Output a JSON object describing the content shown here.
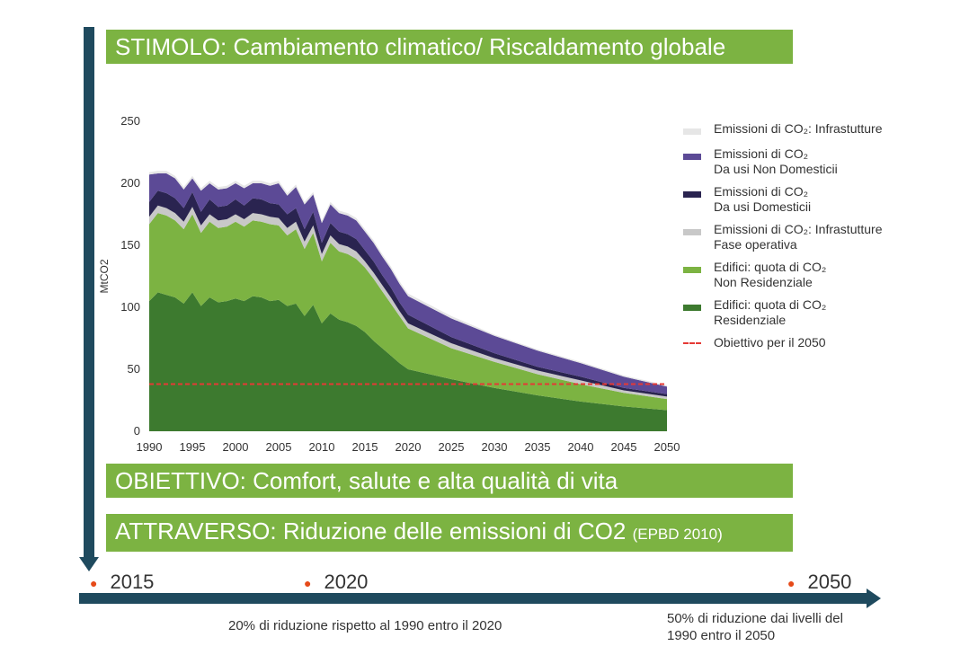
{
  "banners": {
    "stimolo": "STIMOLO: Cambiamento climatico/ Riscaldamento globale",
    "obiettivo": "OBIETTIVO: Comfort, salute e alta qualità di vita",
    "attraverso_main": "ATTRAVERSO: Riduzione delle emissioni di CO2",
    "attraverso_small": "(EPBD 2010)"
  },
  "timeline": {
    "years": [
      "2015",
      "2020",
      "2050"
    ],
    "note_2020": "20% di riduzione rispetto al 1990 entro il 2020",
    "note_2050_line1": "50% di riduzione dai livelli del",
    "note_2050_line2": "1990 entro il 2050"
  },
  "colors": {
    "residenziale": "#3d7a2f",
    "non_residenziale": "#7cb342",
    "infra_operativa": "#c8c8c8",
    "domestici": "#2a2450",
    "non_domestici": "#5c4a96",
    "infrastrutture": "#e6e6e6",
    "target": "#e53935"
  },
  "legend": [
    {
      "key": "infrastrutture",
      "line1": "Emissioni di CO₂: Infrastutture",
      "line2": ""
    },
    {
      "key": "non_domestici",
      "line1": "Emissioni di CO₂",
      "line2": "Da usi Non Domesticii"
    },
    {
      "key": "domestici",
      "line1": "Emissioni di CO₂",
      "line2": "Da usi Domesticii"
    },
    {
      "key": "infra_operativa",
      "line1": "Emissioni di CO₂: Infrastutture",
      "line2": "Fase operativa"
    },
    {
      "key": "non_residenziale",
      "line1": "Edifici: quota di CO₂",
      "line2": "Non Residenziale"
    },
    {
      "key": "residenziale",
      "line1": "Edifici: quota di CO₂",
      "line2": "Residenziale"
    },
    {
      "key": "target",
      "line1": "Obiettivo per il 2050",
      "line2": ""
    }
  ],
  "chart_data": {
    "type": "area",
    "stacked": true,
    "ylabel": "MtCO2",
    "ylim": [
      0,
      250
    ],
    "yticks": [
      0,
      50,
      100,
      150,
      200,
      250
    ],
    "xlim": [
      1990,
      2050
    ],
    "xticks": [
      1990,
      1995,
      2000,
      2005,
      2010,
      2015,
      2020,
      2025,
      2030,
      2035,
      2040,
      2045,
      2050
    ],
    "grid": false,
    "legend_position": "right",
    "target_line": {
      "name": "Obiettivo per il 2050",
      "value": 38
    },
    "x": [
      1990,
      1991,
      1992,
      1993,
      1994,
      1995,
      1996,
      1997,
      1998,
      1999,
      2000,
      2001,
      2002,
      2003,
      2004,
      2005,
      2006,
      2007,
      2008,
      2009,
      2010,
      2011,
      2012,
      2013,
      2014,
      2015,
      2016,
      2017,
      2018,
      2019,
      2020,
      2025,
      2030,
      2035,
      2040,
      2045,
      2050
    ],
    "series": [
      {
        "key": "residenziale",
        "name": "Edifici: quota di CO₂ Residenziale",
        "values": [
          105,
          112,
          110,
          108,
          103,
          112,
          101,
          108,
          104,
          105,
          107,
          105,
          109,
          108,
          105,
          106,
          101,
          103,
          93,
          102,
          87,
          95,
          90,
          88,
          85,
          80,
          73,
          67,
          61,
          55,
          50,
          42,
          35,
          29,
          24,
          20,
          17
        ]
      },
      {
        "key": "non_residenziale",
        "name": "Edifici: quota di CO₂ Non Residenziale",
        "values": [
          62,
          64,
          64,
          62,
          60,
          63,
          59,
          61,
          60,
          60,
          62,
          60,
          61,
          61,
          62,
          60,
          57,
          60,
          54,
          58,
          50,
          57,
          55,
          55,
          54,
          52,
          50,
          46,
          42,
          38,
          33,
          25,
          21,
          17,
          14,
          11,
          9
        ]
      },
      {
        "key": "infra_operativa",
        "name": "Emissioni di CO₂: Infrastutture Fase operativa",
        "values": [
          6,
          6,
          6,
          6,
          6,
          6,
          6,
          6,
          6,
          6,
          6,
          6,
          6,
          6,
          6,
          6,
          6,
          6,
          6,
          6,
          6,
          6,
          6,
          6,
          6,
          5,
          5,
          5,
          5,
          4,
          4,
          4,
          3,
          3,
          3,
          2,
          2
        ]
      },
      {
        "key": "domestici",
        "name": "Emissioni di CO₂ Da usi Domesticii",
        "values": [
          12,
          12,
          12,
          12,
          11,
          12,
          11,
          12,
          11,
          11,
          12,
          11,
          12,
          12,
          11,
          11,
          11,
          11,
          10,
          11,
          9,
          10,
          10,
          10,
          10,
          9,
          9,
          8,
          8,
          7,
          7,
          5,
          4,
          3,
          3,
          2,
          2
        ]
      },
      {
        "key": "non_domestici",
        "name": "Emissioni di CO₂ Da usi Non Domesticii",
        "values": [
          22,
          14,
          16,
          16,
          15,
          11,
          17,
          13,
          14,
          14,
          13,
          14,
          12,
          13,
          14,
          17,
          15,
          17,
          20,
          14,
          16,
          15,
          15,
          15,
          15,
          15,
          15,
          15,
          15,
          15,
          15,
          15,
          14,
          13,
          11,
          9,
          6
        ]
      },
      {
        "key": "infrastrutture",
        "name": "Emissioni di CO₂: Infrastutture",
        "values": [
          2,
          2,
          2,
          2,
          2,
          2,
          2,
          2,
          2,
          2,
          2,
          2,
          2,
          2,
          2,
          2,
          2,
          2,
          2,
          2,
          2,
          2,
          2,
          2,
          2,
          2,
          2,
          2,
          2,
          2,
          2,
          2,
          1,
          1,
          1,
          1,
          1
        ]
      }
    ]
  }
}
